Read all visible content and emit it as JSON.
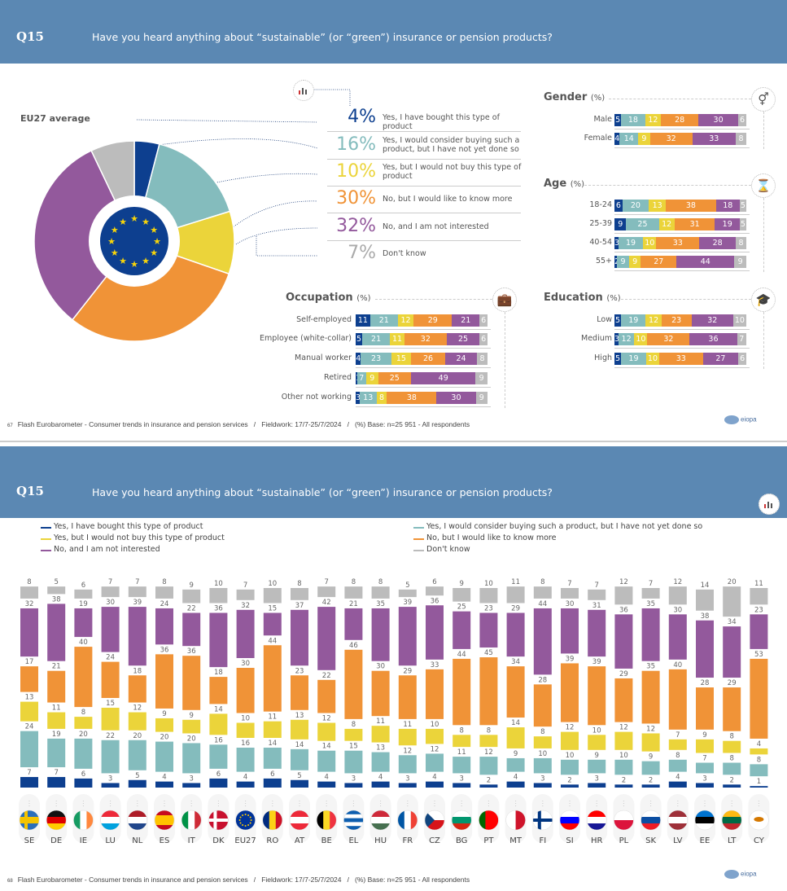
{
  "slide1": {
    "question_id": "Q15",
    "question": "Have you heard anything about “sustainable” (or “green”) insurance or pension products?",
    "pie_title": "EU27 average",
    "legend_icon": "chart-icon",
    "answers": [
      {
        "pct": "4%",
        "label": "Yes, I have bought this type of product"
      },
      {
        "pct": "16%",
        "label": "Yes, I would consider buying such a product, but I have not yet done so"
      },
      {
        "pct": "10%",
        "label": "Yes, but I would not buy this type of product"
      },
      {
        "pct": "30%",
        "label": "No, but I would like to know more"
      },
      {
        "pct": "32%",
        "label": "No, and I am not interested"
      },
      {
        "pct": "7%",
        "label": "Don't know"
      }
    ],
    "sections": {
      "gender": {
        "title": "Gender",
        "unit": "(%)",
        "icon": "gender-icon",
        "rows": [
          {
            "label": "Male",
            "values": [
              5,
              18,
              12,
              28,
              30,
              6
            ]
          },
          {
            "label": "Female",
            "values": [
              4,
              14,
              9,
              32,
              33,
              8
            ]
          }
        ]
      },
      "age": {
        "title": "Age",
        "unit": "(%)",
        "icon": "hourglass-icon",
        "rows": [
          {
            "label": "18-24",
            "values": [
              6,
              20,
              13,
              38,
              18,
              5
            ]
          },
          {
            "label": "25-39",
            "values": [
              9,
              25,
              12,
              31,
              19,
              5
            ]
          },
          {
            "label": "40-54",
            "values": [
              3,
              19,
              10,
              33,
              28,
              8
            ]
          },
          {
            "label": "55+",
            "values": [
              2,
              9,
              9,
              27,
              44,
              9
            ]
          }
        ]
      },
      "occupation": {
        "title": "Occupation",
        "unit": "(%)",
        "icon": "briefcase-icon",
        "rows": [
          {
            "label": "Self-employed",
            "values": [
              11,
              21,
              12,
              29,
              21,
              6
            ]
          },
          {
            "label": "Employee (white-collar)",
            "values": [
              5,
              21,
              11,
              32,
              25,
              6
            ]
          },
          {
            "label": "Manual worker",
            "values": [
              4,
              23,
              15,
              26,
              24,
              8
            ]
          },
          {
            "label": "Retired",
            "values": [
              1,
              7,
              9,
              25,
              49,
              9
            ]
          },
          {
            "label": "Other not working",
            "values": [
              3,
              13,
              8,
              38,
              30,
              9
            ]
          }
        ]
      },
      "education": {
        "title": "Education",
        "unit": "(%)",
        "icon": "graduation-cap-icon",
        "rows": [
          {
            "label": "Low",
            "values": [
              5,
              19,
              12,
              23,
              32,
              10
            ]
          },
          {
            "label": "Medium",
            "values": [
              3,
              12,
              10,
              32,
              36,
              7
            ]
          },
          {
            "label": "High",
            "values": [
              5,
              19,
              10,
              33,
              27,
              6
            ]
          }
        ]
      }
    },
    "footer": {
      "page": "67",
      "text": "Flash Eurobarometer - Consumer trends in insurance and pension services   /   Fieldwork: 17/7-25/7/2024   /   (%) Base: n=25 951 - All respondents"
    }
  },
  "slide2": {
    "question_id": "Q15",
    "question": "Have you heard anything about “sustainable” (or “green”) insurance or pension products?",
    "footer": {
      "page": "68",
      "text": "Flash Eurobarometer - Consumer trends in insurance and pension services   /   Fieldwork: 17/7-25/7/2024   /   (%) Base: n=25 951 - All respondents"
    }
  },
  "logo": "eiopa",
  "colors": [
    "#0d3f8f",
    "#84bcbd",
    "#ebd43a",
    "#f09337",
    "#93599c",
    "#bcbcbc"
  ],
  "header_color": "#5b88b3",
  "chart_data": [
    {
      "type": "pie",
      "title": "EU27 average",
      "categories": [
        "Yes, I have bought this type of product",
        "Yes, I would consider buying such a product, but I have not yet done so",
        "Yes, but I would not buy this type of product",
        "No, but I would like to know more",
        "No, and I am not interested",
        "Don't know"
      ],
      "values": [
        4,
        16,
        10,
        30,
        32,
        7
      ]
    },
    {
      "type": "bar",
      "stacked": true,
      "orientation": "vertical",
      "legend": "top",
      "categories": [
        "SE",
        "DE",
        "IE",
        "LU",
        "NL",
        "ES",
        "IT",
        "DK",
        "EU27",
        "RO",
        "AT",
        "BE",
        "EL",
        "HU",
        "FR",
        "CZ",
        "BG",
        "PT",
        "MT",
        "FI",
        "SI",
        "HR",
        "PL",
        "SK",
        "LV",
        "EE",
        "LT",
        "CY"
      ],
      "series": [
        {
          "name": "Yes, I have bought this type of product",
          "values": [
            7,
            7,
            6,
            3,
            5,
            4,
            3,
            6,
            4,
            6,
            5,
            4,
            3,
            4,
            3,
            4,
            3,
            2,
            4,
            3,
            2,
            3,
            2,
            2,
            4,
            3,
            2,
            1
          ]
        },
        {
          "name": "Yes, I would consider buying such a product, but I have not yet done so",
          "values": [
            24,
            19,
            20,
            22,
            20,
            20,
            20,
            16,
            16,
            14,
            14,
            14,
            15,
            13,
            12,
            12,
            11,
            12,
            9,
            10,
            10,
            9,
            10,
            9,
            8,
            7,
            8,
            8
          ]
        },
        {
          "name": "Yes, but I would not buy this type of product",
          "values": [
            13,
            11,
            8,
            15,
            12,
            9,
            9,
            14,
            10,
            11,
            13,
            12,
            8,
            11,
            11,
            10,
            8,
            8,
            14,
            8,
            12,
            10,
            12,
            12,
            7,
            9,
            8,
            4
          ]
        },
        {
          "name": "No, but I would like to know more",
          "values": [
            17,
            21,
            40,
            24,
            18,
            36,
            36,
            18,
            30,
            44,
            23,
            22,
            46,
            30,
            29,
            33,
            44,
            45,
            34,
            28,
            39,
            39,
            29,
            35,
            40,
            28,
            29,
            53
          ]
        },
        {
          "name": "No, and I am not interested",
          "values": [
            32,
            38,
            19,
            30,
            39,
            24,
            22,
            36,
            32,
            15,
            37,
            42,
            21,
            35,
            39,
            36,
            25,
            23,
            29,
            44,
            30,
            31,
            36,
            35,
            30,
            38,
            34,
            23
          ]
        },
        {
          "name": "Don't know",
          "values": [
            8,
            5,
            6,
            7,
            7,
            8,
            9,
            10,
            7,
            10,
            8,
            7,
            8,
            8,
            5,
            6,
            9,
            10,
            11,
            8,
            7,
            7,
            12,
            7,
            12,
            14,
            20,
            11
          ]
        }
      ]
    }
  ]
}
